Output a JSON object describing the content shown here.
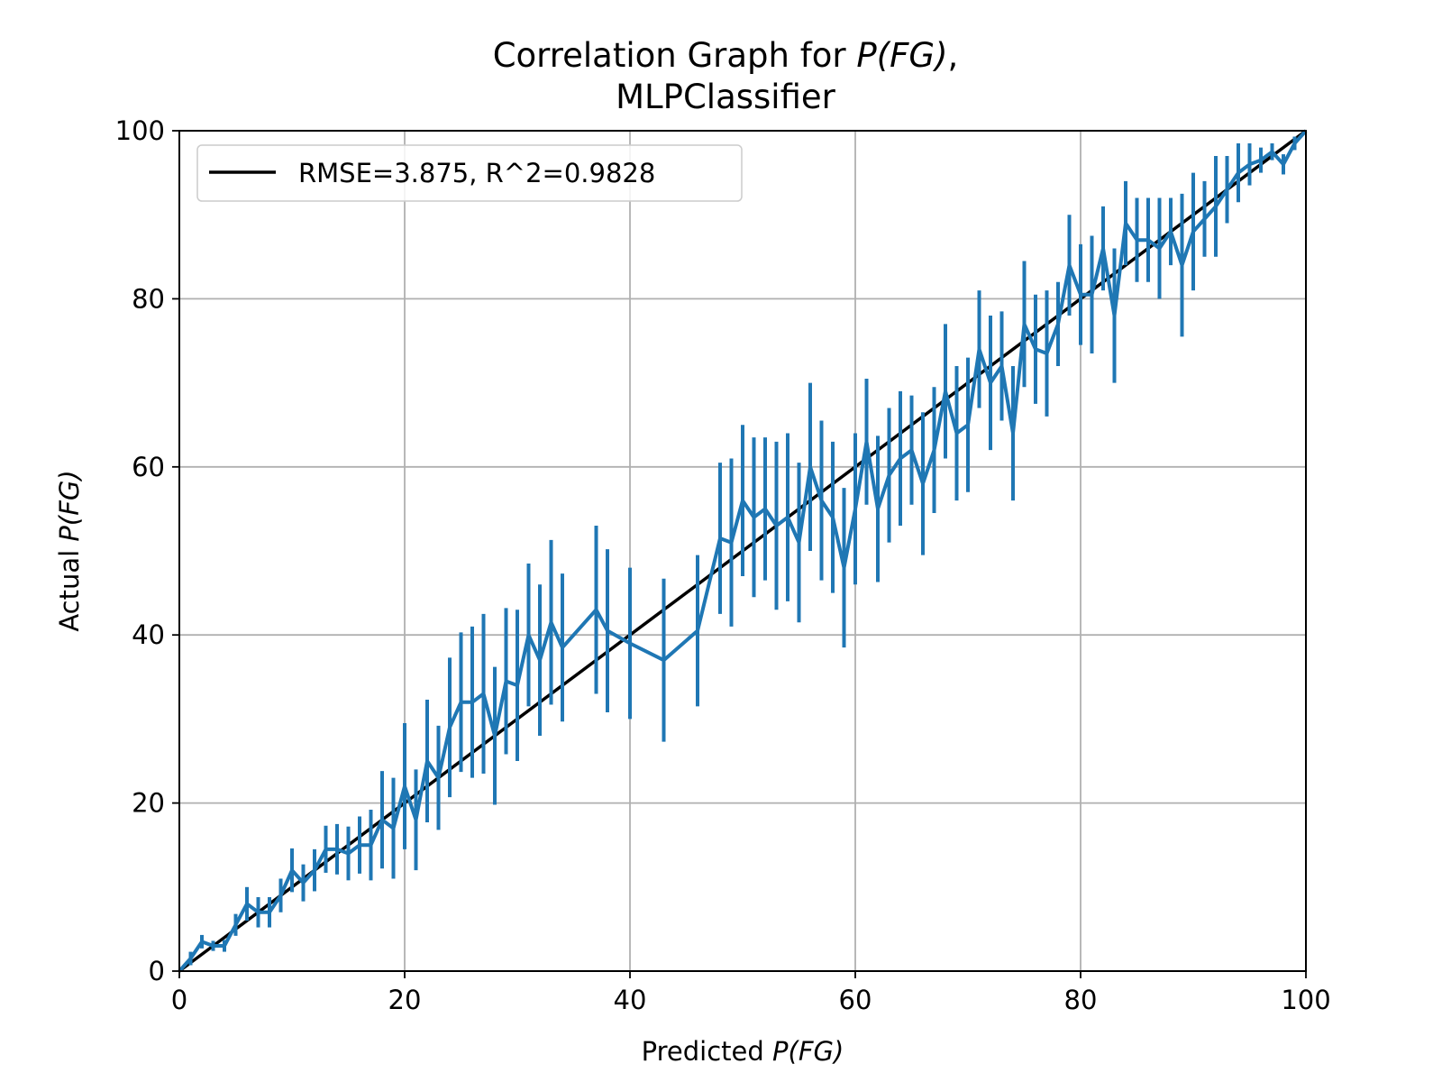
{
  "chart_data": {
    "type": "line",
    "title_line1_prefix": "Correlation Graph for ",
    "title_math": "P(FG)",
    "title_line1_suffix": ",",
    "title_line2": "MLPClassifier",
    "xlabel_prefix": "Predicted ",
    "ylabel_prefix": "Actual ",
    "axis_math": "P(FG)",
    "xlim": [
      0,
      100
    ],
    "ylim": [
      0,
      100
    ],
    "xticks": [
      0,
      20,
      40,
      60,
      80,
      100
    ],
    "yticks": [
      0,
      20,
      40,
      60,
      80,
      100
    ],
    "grid": true,
    "legend_position": "upper-left",
    "colors": {
      "series": "#1f77b4",
      "reference": "#000000",
      "grid": "#b0b0b0"
    },
    "reference_line": {
      "label": "RMSE=3.875, R^2=0.9828",
      "x": [
        0,
        100
      ],
      "y": [
        0,
        100
      ]
    },
    "series": [
      {
        "points": [
          {
            "x": 0,
            "y": 0,
            "e": 0
          },
          {
            "x": 1,
            "y": 1.5,
            "e": 0.8
          },
          {
            "x": 2,
            "y": 3.5,
            "e": 0.8
          },
          {
            "x": 3,
            "y": 3.0,
            "e": 0.6
          },
          {
            "x": 4,
            "y": 3.0,
            "e": 0.7
          },
          {
            "x": 5,
            "y": 5.5,
            "e": 1.3
          },
          {
            "x": 6,
            "y": 8.0,
            "e": 2.0
          },
          {
            "x": 7,
            "y": 7.0,
            "e": 1.8
          },
          {
            "x": 8,
            "y": 7.0,
            "e": 1.8
          },
          {
            "x": 9,
            "y": 9.0,
            "e": 2.0
          },
          {
            "x": 10,
            "y": 12.0,
            "e": 2.6
          },
          {
            "x": 11,
            "y": 10.5,
            "e": 2.2
          },
          {
            "x": 12,
            "y": 12.0,
            "e": 2.5
          },
          {
            "x": 13,
            "y": 14.5,
            "e": 2.8
          },
          {
            "x": 14,
            "y": 14.5,
            "e": 3.0
          },
          {
            "x": 15,
            "y": 14.0,
            "e": 3.2
          },
          {
            "x": 16,
            "y": 15.0,
            "e": 3.4
          },
          {
            "x": 17,
            "y": 15.0,
            "e": 4.2
          },
          {
            "x": 18,
            "y": 18.0,
            "e": 5.8
          },
          {
            "x": 19,
            "y": 17.0,
            "e": 6.0
          },
          {
            "x": 20,
            "y": 22.0,
            "e": 7.5
          },
          {
            "x": 21,
            "y": 18.0,
            "e": 6.0
          },
          {
            "x": 22,
            "y": 25.0,
            "e": 7.3
          },
          {
            "x": 23,
            "y": 23.0,
            "e": 6.2
          },
          {
            "x": 24,
            "y": 29.0,
            "e": 8.3
          },
          {
            "x": 25,
            "y": 32.0,
            "e": 8.3
          },
          {
            "x": 26,
            "y": 32.0,
            "e": 9.0
          },
          {
            "x": 27,
            "y": 33.0,
            "e": 9.5
          },
          {
            "x": 28,
            "y": 28.0,
            "e": 8.2
          },
          {
            "x": 29,
            "y": 34.5,
            "e": 8.7
          },
          {
            "x": 30,
            "y": 34.0,
            "e": 9.0
          },
          {
            "x": 31,
            "y": 40.0,
            "e": 8.5
          },
          {
            "x": 32,
            "y": 37.0,
            "e": 9.0
          },
          {
            "x": 33,
            "y": 41.5,
            "e": 9.8
          },
          {
            "x": 34,
            "y": 38.5,
            "e": 8.8
          },
          {
            "x": 37,
            "y": 43.0,
            "e": 10.0
          },
          {
            "x": 38,
            "y": 40.5,
            "e": 9.7
          },
          {
            "x": 40,
            "y": 39.0,
            "e": 9.0
          },
          {
            "x": 43,
            "y": 37.0,
            "e": 9.7
          },
          {
            "x": 46,
            "y": 40.5,
            "e": 9.0
          },
          {
            "x": 48,
            "y": 51.5,
            "e": 9.0
          },
          {
            "x": 49,
            "y": 51.0,
            "e": 10.0
          },
          {
            "x": 50,
            "y": 56.0,
            "e": 9.0
          },
          {
            "x": 51,
            "y": 54.0,
            "e": 9.5
          },
          {
            "x": 52,
            "y": 55.0,
            "e": 8.5
          },
          {
            "x": 53,
            "y": 53.0,
            "e": 10.0
          },
          {
            "x": 54,
            "y": 54.0,
            "e": 10.0
          },
          {
            "x": 55,
            "y": 51.0,
            "e": 9.5
          },
          {
            "x": 56,
            "y": 60.0,
            "e": 10.0
          },
          {
            "x": 57,
            "y": 56.0,
            "e": 9.5
          },
          {
            "x": 58,
            "y": 54.0,
            "e": 9.0
          },
          {
            "x": 59,
            "y": 48.0,
            "e": 9.5
          },
          {
            "x": 60,
            "y": 55.0,
            "e": 9.0
          },
          {
            "x": 61,
            "y": 63.0,
            "e": 7.5
          },
          {
            "x": 62,
            "y": 55.0,
            "e": 8.7
          },
          {
            "x": 63,
            "y": 59.0,
            "e": 8.0
          },
          {
            "x": 64,
            "y": 61.0,
            "e": 8.0
          },
          {
            "x": 65,
            "y": 62.0,
            "e": 6.5
          },
          {
            "x": 66,
            "y": 58.0,
            "e": 8.5
          },
          {
            "x": 67,
            "y": 62.0,
            "e": 7.5
          },
          {
            "x": 68,
            "y": 69.0,
            "e": 8.0
          },
          {
            "x": 69,
            "y": 64.0,
            "e": 8.0
          },
          {
            "x": 70,
            "y": 65.0,
            "e": 8.0
          },
          {
            "x": 71,
            "y": 74.0,
            "e": 7.0
          },
          {
            "x": 72,
            "y": 70.0,
            "e": 8.0
          },
          {
            "x": 73,
            "y": 72.0,
            "e": 6.5
          },
          {
            "x": 74,
            "y": 64.0,
            "e": 8.0
          },
          {
            "x": 75,
            "y": 77.0,
            "e": 7.5
          },
          {
            "x": 76,
            "y": 74.0,
            "e": 6.5
          },
          {
            "x": 77,
            "y": 73.5,
            "e": 7.5
          },
          {
            "x": 78,
            "y": 77.0,
            "e": 5.0
          },
          {
            "x": 79,
            "y": 84.0,
            "e": 6.0
          },
          {
            "x": 80,
            "y": 80.5,
            "e": 6.0
          },
          {
            "x": 81,
            "y": 80.5,
            "e": 7.0
          },
          {
            "x": 82,
            "y": 86.0,
            "e": 5.0
          },
          {
            "x": 83,
            "y": 78.0,
            "e": 8.0
          },
          {
            "x": 84,
            "y": 89.0,
            "e": 5.0
          },
          {
            "x": 85,
            "y": 87.0,
            "e": 5.0
          },
          {
            "x": 86,
            "y": 87.0,
            "e": 5.0
          },
          {
            "x": 87,
            "y": 86.0,
            "e": 6.0
          },
          {
            "x": 88,
            "y": 88.0,
            "e": 4.0
          },
          {
            "x": 89,
            "y": 84.0,
            "e": 8.5
          },
          {
            "x": 90,
            "y": 88.0,
            "e": 7.0
          },
          {
            "x": 91,
            "y": 89.5,
            "e": 4.5
          },
          {
            "x": 92,
            "y": 91.0,
            "e": 6.0
          },
          {
            "x": 93,
            "y": 93.0,
            "e": 4.0
          },
          {
            "x": 94,
            "y": 95.0,
            "e": 3.5
          },
          {
            "x": 95,
            "y": 96.0,
            "e": 2.5
          },
          {
            "x": 96,
            "y": 96.5,
            "e": 1.5
          },
          {
            "x": 97,
            "y": 97.5,
            "e": 1.0
          },
          {
            "x": 98,
            "y": 96.0,
            "e": 1.2
          },
          {
            "x": 99,
            "y": 98.5,
            "e": 0.8
          },
          {
            "x": 100,
            "y": 100,
            "e": 0
          }
        ]
      }
    ]
  }
}
